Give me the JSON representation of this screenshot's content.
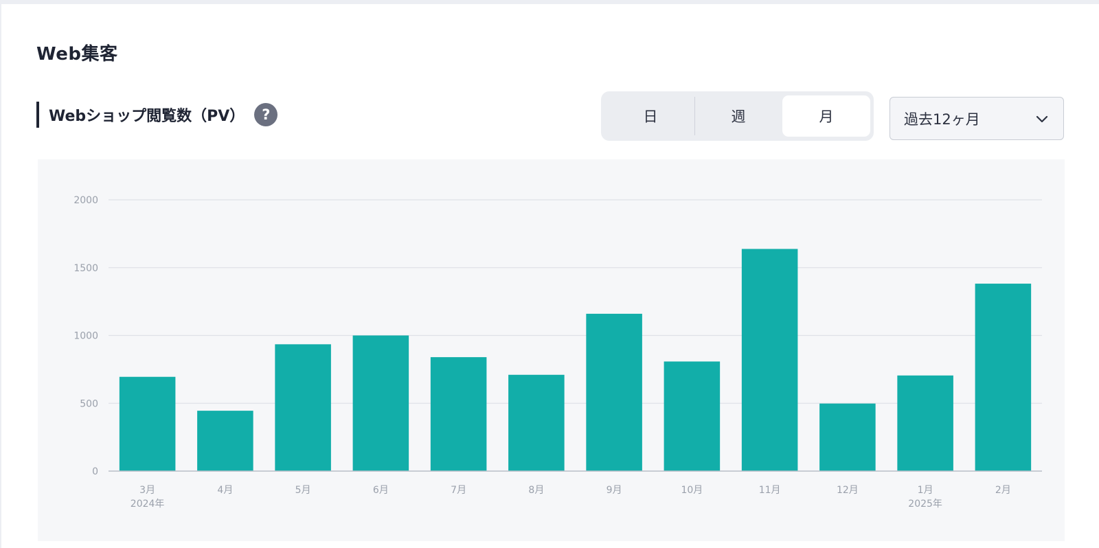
{
  "header": {
    "section_title": "Web集客",
    "chart_title": "Webショップ閲覧数（PV）",
    "help_icon": "question-circle-icon",
    "help_glyph": "?"
  },
  "period_toggle": {
    "options": [
      "日",
      "週",
      "月"
    ],
    "selected": "月"
  },
  "range_select": {
    "value": "過去12ヶ月",
    "icon": "chevron-down-icon"
  },
  "colors": {
    "bar": "#12aea9",
    "grid": "#dfe2e7",
    "axis": "#b9bec7"
  },
  "chart_data": {
    "type": "bar",
    "categories": [
      "3月",
      "4月",
      "5月",
      "6月",
      "7月",
      "8月",
      "9月",
      "10月",
      "11月",
      "12月",
      "1月",
      "2月"
    ],
    "category_sublabels": [
      "2024年",
      "",
      "",
      "",
      "",
      "",
      "",
      "",
      "",
      "",
      "2025年",
      ""
    ],
    "values": [
      695,
      445,
      935,
      1000,
      840,
      710,
      1160,
      808,
      1638,
      498,
      705,
      1382
    ],
    "ylim": [
      0,
      2000
    ],
    "yticks": [
      0,
      500,
      1000,
      1500,
      2000
    ],
    "grid": true,
    "legend": "none"
  }
}
